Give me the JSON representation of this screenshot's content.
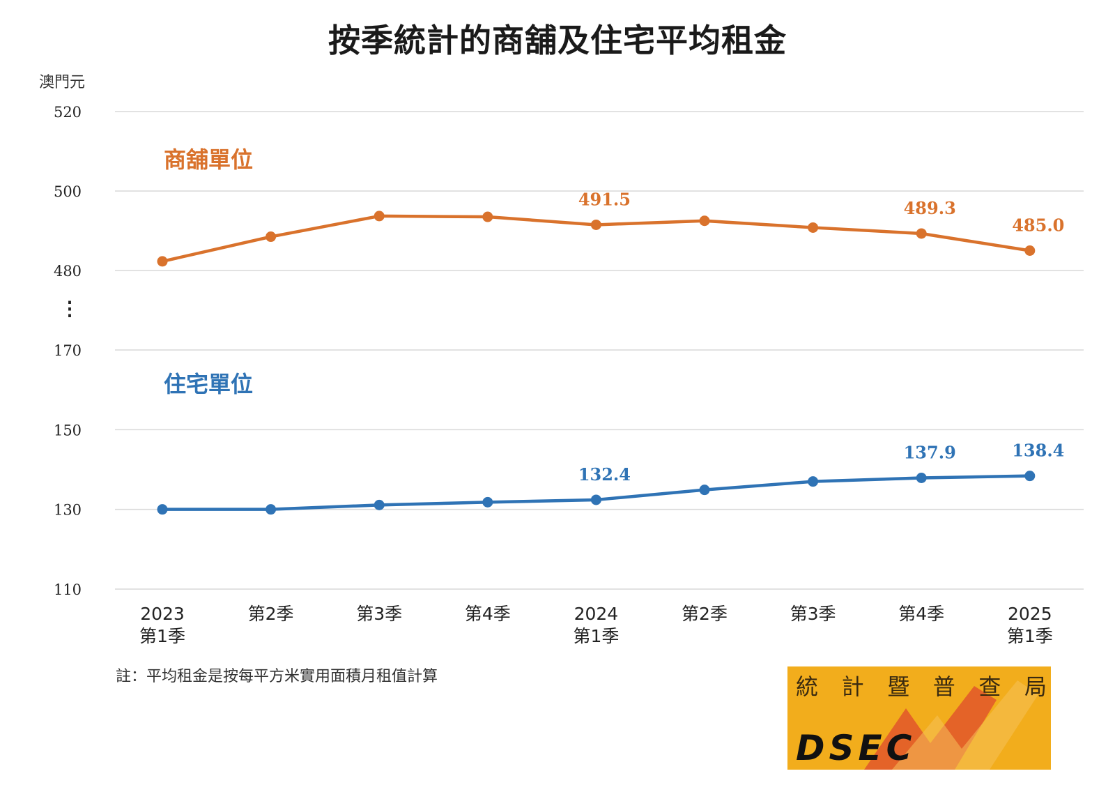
{
  "title": "按季統計的商舖及住宅平均租金",
  "unit_label": "澳門元",
  "note": "註：平均租金是按每平方米實用面積月租值計算",
  "axis_break_symbol": "⋮",
  "logo": {
    "chars": [
      "統",
      "計",
      "暨",
      "普",
      "查",
      "局"
    ],
    "text": "DSEC",
    "colors": {
      "background": "#f2ad1c",
      "accent": "#e2562a"
    }
  },
  "colors": {
    "commercial": "#d9722c",
    "residential": "#2f73b5",
    "grid": "#d9d9d9"
  },
  "chart_data": {
    "type": "line",
    "title": "按季統計的商舖及住宅平均租金",
    "ylabel": "澳門元",
    "x": [
      "2023\n第1季",
      "第2季",
      "第3季",
      "第4季",
      "2024\n第1季",
      "第2季",
      "第3季",
      "第4季",
      "2025\n第1季"
    ],
    "broken_y_axis": true,
    "upper_panel": {
      "ylim": [
        480,
        520
      ],
      "ticks": [
        520,
        500,
        480
      ]
    },
    "lower_panel": {
      "ylim": [
        110,
        170
      ],
      "ticks": [
        170,
        150,
        130,
        110
      ]
    },
    "grid": true,
    "series": [
      {
        "name": "商舖單位",
        "panel": "upper",
        "color": "#d9722c",
        "values": [
          482.3,
          488.5,
          493.7,
          493.5,
          491.5,
          492.5,
          490.8,
          489.3,
          485.0
        ],
        "labeled_indices": [
          4,
          7,
          8
        ],
        "data_labels": [
          "491.5",
          "489.3",
          "485.0"
        ]
      },
      {
        "name": "住宅單位",
        "panel": "lower",
        "color": "#2f73b5",
        "values": [
          130.0,
          130.0,
          131.1,
          131.8,
          132.4,
          134.9,
          137.0,
          137.9,
          138.4
        ],
        "labeled_indices": [
          4,
          7,
          8
        ],
        "data_labels": [
          "132.4",
          "137.9",
          "138.4"
        ]
      }
    ]
  }
}
